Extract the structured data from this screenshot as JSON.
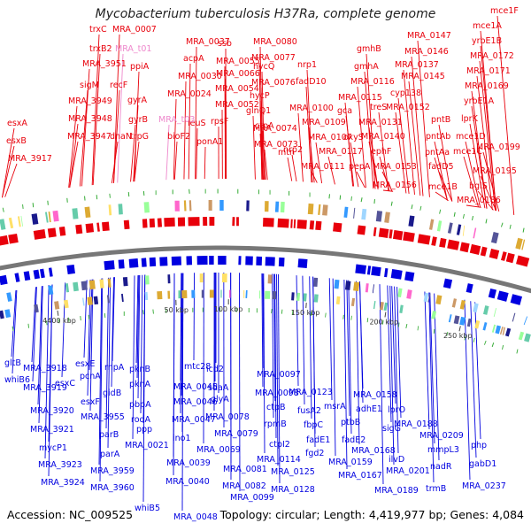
{
  "title": "Mycobacterium tuberculosis H37Ra, complete genome",
  "footer": {
    "accession": "Accession: NC_009525",
    "topology": "Topology: circular; Length: 4,419,977 bp; Genes: 4,084"
  },
  "colors": {
    "forward_genes": "#e8000b",
    "reverse_genes": "#0000e0",
    "backbone": "#777777",
    "highlight_label": "#ee88cc",
    "tick": "#444444"
  },
  "scale_ticks": [
    {
      "label": "4400 kbp"
    },
    {
      "label": "50 kbp"
    },
    {
      "label": "100 kbp"
    },
    {
      "label": "150 kbp"
    },
    {
      "label": "200 kbp"
    },
    {
      "label": "250 kbp"
    }
  ],
  "top_labels": [
    {
      "text": "mce1F",
      "color": "red"
    },
    {
      "text": "mce1A",
      "color": "red"
    },
    {
      "text": "yrbE1B",
      "color": "red"
    },
    {
      "text": "MRA_0172",
      "color": "red"
    },
    {
      "text": "MRA_0171",
      "color": "red"
    },
    {
      "text": "MRA_0169",
      "color": "red"
    },
    {
      "text": "yrbE1A",
      "color": "red"
    },
    {
      "text": "lprK",
      "color": "red"
    },
    {
      "text": "mce1D",
      "color": "red"
    },
    {
      "text": "mce1C",
      "color": "red"
    },
    {
      "text": "MRA_0199",
      "color": "red"
    },
    {
      "text": "MRA_0195",
      "color": "red"
    },
    {
      "text": "bglS",
      "color": "red"
    },
    {
      "text": "MRA_0186",
      "color": "red"
    },
    {
      "text": "MRA_0147",
      "color": "red"
    },
    {
      "text": "MRA_0146",
      "color": "red"
    },
    {
      "text": "MRA_0145",
      "color": "red"
    },
    {
      "text": "MRA_0137",
      "color": "red"
    },
    {
      "text": "gmhB",
      "color": "red"
    },
    {
      "text": "gmhA",
      "color": "red"
    },
    {
      "text": "MRA_0116",
      "color": "red"
    },
    {
      "text": "cyp138",
      "color": "red"
    },
    {
      "text": "treS",
      "color": "red"
    },
    {
      "text": "MRA_0152",
      "color": "red"
    },
    {
      "text": "MRA_0131",
      "color": "red"
    },
    {
      "text": "MRA_0115",
      "color": "red"
    },
    {
      "text": "pntB",
      "color": "red"
    },
    {
      "text": "pntAb",
      "color": "red"
    },
    {
      "text": "pntAa",
      "color": "red"
    },
    {
      "text": "fadD5",
      "color": "red"
    },
    {
      "text": "mce1B",
      "color": "red"
    },
    {
      "text": "MRA_0140",
      "color": "red"
    },
    {
      "text": "ephF",
      "color": "red"
    },
    {
      "text": "MRA_0153",
      "color": "red"
    },
    {
      "text": "MRA_0156",
      "color": "red"
    },
    {
      "text": "oxyS",
      "color": "red"
    },
    {
      "text": "pepA",
      "color": "red"
    },
    {
      "text": "gca",
      "color": "red"
    },
    {
      "text": "MRA_0117",
      "color": "red"
    },
    {
      "text": "MRA_0111",
      "color": "red"
    },
    {
      "text": "MRA_0109",
      "color": "red"
    },
    {
      "text": "MRA_0107",
      "color": "red"
    },
    {
      "text": "MRA_0100",
      "color": "red"
    },
    {
      "text": "nrp1",
      "color": "red"
    },
    {
      "text": "fadD10",
      "color": "red"
    },
    {
      "text": "MRA_0080",
      "color": "red"
    },
    {
      "text": "MRA_0077",
      "color": "red"
    },
    {
      "text": "hycQ",
      "color": "red"
    },
    {
      "text": "MRA_0076",
      "color": "red"
    },
    {
      "text": "hycP",
      "color": "red"
    },
    {
      "text": "glnQ1",
      "color": "red"
    },
    {
      "text": "ctpA",
      "color": "red"
    },
    {
      "text": "nrp2",
      "color": "red"
    },
    {
      "text": "mtn",
      "color": "red"
    },
    {
      "text": "MRA_0073",
      "color": "red"
    },
    {
      "text": "MRA_0074",
      "color": "red"
    },
    {
      "text": "ssb",
      "color": "red"
    },
    {
      "text": "MRA_0055",
      "color": "red"
    },
    {
      "text": "MRA_0066",
      "color": "red"
    },
    {
      "text": "MRA_0054",
      "color": "red"
    },
    {
      "text": "MRA_0052",
      "color": "red"
    },
    {
      "text": "rpsF",
      "color": "red"
    },
    {
      "text": "ponA1",
      "color": "red"
    },
    {
      "text": "leuS",
      "color": "red"
    },
    {
      "text": "MRA_0037",
      "color": "red"
    },
    {
      "text": "acpA",
      "color": "red"
    },
    {
      "text": "MRA_0030",
      "color": "red"
    },
    {
      "text": "MRA_0024",
      "color": "red"
    },
    {
      "text": "bioF2",
      "color": "red"
    },
    {
      "text": "MRA_t03",
      "color": "pink"
    },
    {
      "text": "MRA_0007",
      "color": "red"
    },
    {
      "text": "MRA_t01",
      "color": "pink"
    },
    {
      "text": "ppiA",
      "color": "red"
    },
    {
      "text": "recF",
      "color": "red"
    },
    {
      "text": "gyrA",
      "color": "red"
    },
    {
      "text": "gyrB",
      "color": "red"
    },
    {
      "text": "dnaN",
      "color": "red"
    },
    {
      "text": "trpG",
      "color": "red"
    },
    {
      "text": "trxC",
      "color": "red"
    },
    {
      "text": "trxB2",
      "color": "red"
    },
    {
      "text": "MRA_3951",
      "color": "red"
    },
    {
      "text": "sigM",
      "color": "red"
    },
    {
      "text": "MRA_3949",
      "color": "red"
    },
    {
      "text": "MRA_3948",
      "color": "red"
    },
    {
      "text": "MRA_3947",
      "color": "red"
    },
    {
      "text": "esxA",
      "color": "red"
    },
    {
      "text": "esxB",
      "color": "red"
    },
    {
      "text": "MRA_3917",
      "color": "red"
    }
  ],
  "bottom_labels": [
    {
      "text": "gltB"
    },
    {
      "text": "whiB6"
    },
    {
      "text": "MRA_3918"
    },
    {
      "text": "MRA_3919"
    },
    {
      "text": "esxC"
    },
    {
      "text": "MRA_3920"
    },
    {
      "text": "MRA_3921"
    },
    {
      "text": "mycP1"
    },
    {
      "text": "MRA_3923"
    },
    {
      "text": "MRA_3924"
    },
    {
      "text": "esxE"
    },
    {
      "text": "pcnA"
    },
    {
      "text": "esxF"
    },
    {
      "text": "rnpA"
    },
    {
      "text": "gidB"
    },
    {
      "text": "MRA_3955"
    },
    {
      "text": "parB"
    },
    {
      "text": "parA"
    },
    {
      "text": "MRA_3959"
    },
    {
      "text": "MRA_3960"
    },
    {
      "text": "pknB"
    },
    {
      "text": "pknA"
    },
    {
      "text": "pbpA"
    },
    {
      "text": "rodA"
    },
    {
      "text": "ppp"
    },
    {
      "text": "MRA_0021"
    },
    {
      "text": "whiB5"
    },
    {
      "text": "mtc28"
    },
    {
      "text": "MRA_0045"
    },
    {
      "text": "MRA_0046"
    },
    {
      "text": "MRA_0047"
    },
    {
      "text": "ino1"
    },
    {
      "text": "MRA_0039"
    },
    {
      "text": "MRA_0040"
    },
    {
      "text": "MRA_0048"
    },
    {
      "text": "icd2"
    },
    {
      "text": "sdaA"
    },
    {
      "text": "glyA"
    },
    {
      "text": "MRA_0078"
    },
    {
      "text": "MRA_0079"
    },
    {
      "text": "MRA_0069"
    },
    {
      "text": "MRA_0081"
    },
    {
      "text": "MRA_0082"
    },
    {
      "text": "MRA_0099"
    },
    {
      "text": "MRA_0097"
    },
    {
      "text": "MRA_0098"
    },
    {
      "text": "ctpB"
    },
    {
      "text": "rpmB"
    },
    {
      "text": "ctpI2"
    },
    {
      "text": "MRA_0114"
    },
    {
      "text": "MRA_0128"
    },
    {
      "text": "MRA_0123"
    },
    {
      "text": "fusA2"
    },
    {
      "text": "fbpC"
    },
    {
      "text": "fadE1"
    },
    {
      "text": "fgd2"
    },
    {
      "text": "MRA_0125"
    },
    {
      "text": "msrA"
    },
    {
      "text": "ptbB"
    },
    {
      "text": "fadE2"
    },
    {
      "text": "MRA_0159"
    },
    {
      "text": "MRA_0168"
    },
    {
      "text": "MRA_0167"
    },
    {
      "text": "MRA_0158"
    },
    {
      "text": "adhE1"
    },
    {
      "text": "lprO"
    },
    {
      "text": "sigG"
    },
    {
      "text": "ilvD"
    },
    {
      "text": "MRA_0188"
    },
    {
      "text": "MRA_0201"
    },
    {
      "text": "MRA_0189"
    },
    {
      "text": "MRA_0209"
    },
    {
      "text": "mmpL3"
    },
    {
      "text": "trmB"
    },
    {
      "text": "nadR"
    },
    {
      "text": "php"
    },
    {
      "text": "gabD1"
    },
    {
      "text": "MRA_0237"
    }
  ]
}
